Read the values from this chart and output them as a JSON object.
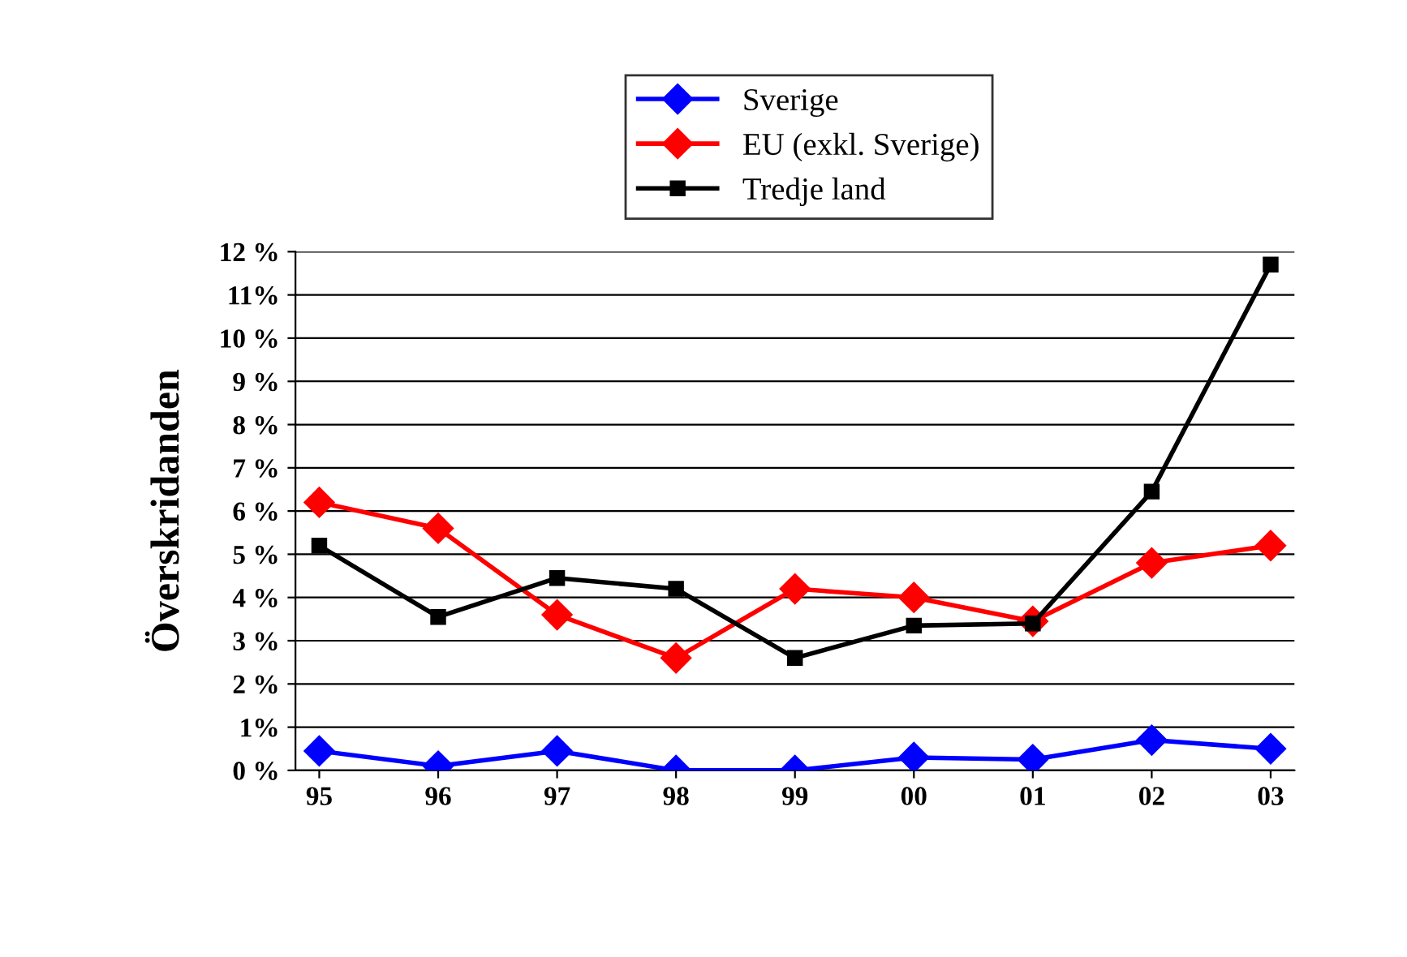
{
  "chart_data": {
    "type": "line",
    "ylabel": "Överskridanden",
    "categories": [
      "95",
      "96",
      "97",
      "98",
      "99",
      "00",
      "01",
      "02",
      "03"
    ],
    "series": [
      {
        "name": "Sverige",
        "color": "#0000ff",
        "marker": "diamond",
        "values": [
          0.45,
          0.1,
          0.45,
          0.0,
          0.0,
          0.3,
          0.25,
          0.7,
          0.5
        ]
      },
      {
        "name": "EU (exkl. Sverige)",
        "color": "#ff0000",
        "marker": "diamond",
        "values": [
          6.2,
          5.6,
          3.6,
          2.6,
          4.2,
          4.0,
          3.45,
          4.8,
          5.2
        ]
      },
      {
        "name": "Tredje land",
        "color": "#000000",
        "marker": "square",
        "values": [
          5.2,
          3.55,
          4.45,
          4.2,
          2.6,
          3.35,
          3.4,
          6.45,
          11.7
        ]
      }
    ],
    "ylim": [
      0,
      12
    ],
    "yticks": [
      {
        "value": 0,
        "label": "0 %"
      },
      {
        "value": 1,
        "label": "1%"
      },
      {
        "value": 2,
        "label": "2 %"
      },
      {
        "value": 3,
        "label": "3 %"
      },
      {
        "value": 4,
        "label": "4 %"
      },
      {
        "value": 5,
        "label": "5 %"
      },
      {
        "value": 6,
        "label": "6 %"
      },
      {
        "value": 7,
        "label": "7 %"
      },
      {
        "value": 8,
        "label": "8 %"
      },
      {
        "value": 9,
        "label": "9 %"
      },
      {
        "value": 10,
        "label": "10 %"
      },
      {
        "value": 11,
        "label": "11%"
      },
      {
        "value": 12,
        "label": "12 %"
      }
    ],
    "grid": "y",
    "legend": "top",
    "line_style": "solid"
  }
}
